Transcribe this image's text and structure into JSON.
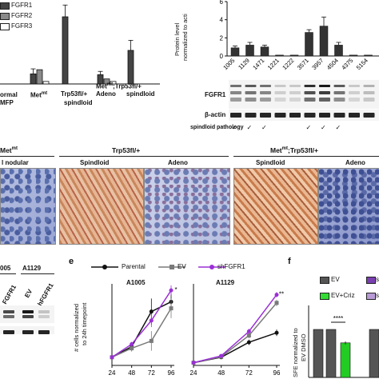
{
  "panel_a": {
    "legend": [
      "FGFR1",
      "FGFR2",
      "FGFR3"
    ],
    "legend_colors": [
      "#444444",
      "#8a8a8a",
      "#ffffff"
    ],
    "group_labels": [
      "ormal",
      "MFP",
      "Met",
      "mt",
      "Trp53fl/+",
      "spindloid",
      "Adeno",
      "spindloid"
    ],
    "metmt": "Met",
    "metmt_sup": "mt",
    "metmt2": "Met",
    "metmt2_sup": "mt",
    "metmt2_suffix": ";Trp53fl/+"
  },
  "panel_b": {
    "ylabel_line1": "Protein level",
    "ylabel_line2": "normalized to acti",
    "ticks": [
      "6",
      "4",
      "2",
      "0"
    ],
    "samples": [
      "1005",
      "1129",
      "1471",
      "1221",
      "1222",
      "3571",
      "3957",
      "4504",
      "4375",
      "5154"
    ],
    "blot_labels": [
      "FGFR1",
      "β-actin"
    ],
    "pathology_label": "spindloid pathology",
    "check": "✓"
  },
  "panel_c": {
    "headers": [
      "Met",
      "Trp53fl/+",
      "Met"
    ],
    "header_sup": "mt",
    "header3_suffix": "mt;Trp53fl/+",
    "subheaders": [
      "l nodular",
      "Spindloid",
      "Adeno",
      "Spindloid",
      "Adeno"
    ]
  },
  "panel_d": {
    "col_labels": [
      "005",
      "A1129"
    ],
    "lane_labels": [
      "FGFR1",
      "EV",
      "shFGFR1"
    ]
  },
  "panel_e": {
    "letter": "e",
    "ylabel_line1": "# cells normalized",
    "ylabel_line2": "to 24h timepoint",
    "legend": [
      "Parental",
      "EV",
      "shFGFR1"
    ],
    "titles": [
      "A1005",
      "A1129"
    ],
    "stars": [
      "*",
      "**"
    ]
  },
  "panel_f": {
    "letter": "f",
    "legend": [
      "EV",
      "s",
      "EV+Criz",
      "s"
    ],
    "ylabel_line1": "SFE normalized to",
    "ylabel_line2": "EV DMSO",
    "ticks": [
      "1.5",
      "1.0",
      "0.5",
      "0.0"
    ],
    "sig": "****"
  },
  "chart_data": [
    {
      "type": "bar",
      "panel": "a",
      "series": [
        {
          "name": "FGFR1",
          "values": [
            0.9,
            1.2,
            8.0,
            1.1,
            4.0
          ]
        },
        {
          "name": "FGFR2",
          "values": [
            0.0,
            1.7,
            0.0,
            0.6,
            0.0
          ]
        },
        {
          "name": "FGFR3",
          "values": [
            0.0,
            0.3,
            0.0,
            0.3,
            0.0
          ]
        }
      ],
      "errors": [
        0.2,
        0.6,
        1.4,
        0.4,
        1.2
      ],
      "ylim": [
        0,
        10
      ]
    },
    {
      "type": "bar",
      "panel": "b",
      "categories": [
        "1005",
        "1129",
        "1471",
        "1221",
        "1222",
        "3571",
        "3957",
        "4504",
        "4375",
        "5154"
      ],
      "values": [
        0.9,
        1.2,
        1.0,
        0.1,
        0.1,
        2.6,
        3.3,
        1.2,
        0.1,
        0.1
      ],
      "errors": [
        0.2,
        0.3,
        0.2,
        0.0,
        0.0,
        0.3,
        1.0,
        0.3,
        0.0,
        0.0
      ],
      "ylim": [
        0,
        6
      ]
    },
    {
      "type": "line",
      "panel": "e",
      "subplot": "A1005",
      "x": [
        24,
        48,
        72,
        96
      ],
      "series": [
        {
          "name": "Parental",
          "values": [
            1.0,
            2.3,
            6.6,
            7.8
          ],
          "errors": [
            0,
            0.5,
            1.6,
            1.0
          ]
        },
        {
          "name": "EV",
          "values": [
            1.0,
            2.1,
            3.0,
            7.0
          ],
          "errors": [
            0,
            0.4,
            1.2,
            1.2
          ]
        },
        {
          "name": "shFGFR1",
          "values": [
            1.0,
            2.6,
            5.5,
            9.2
          ],
          "errors": [
            0,
            0.3,
            0.8,
            0.6
          ]
        }
      ]
    },
    {
      "type": "line",
      "panel": "e",
      "subplot": "A1129",
      "x": [
        24,
        48,
        72,
        96
      ],
      "series": [
        {
          "name": "Parental",
          "values": [
            1.0,
            3.0,
            8.5,
            12.0
          ],
          "errors": [
            0,
            0.5,
            1.0,
            1.2
          ]
        },
        {
          "name": "EV",
          "values": [
            1.0,
            3.2,
            11.0,
            23.0
          ],
          "errors": [
            0,
            0.5,
            1.0,
            1.2
          ]
        },
        {
          "name": "shFGFR1",
          "values": [
            1.0,
            3.5,
            12.5,
            26.0
          ],
          "errors": [
            0,
            0.5,
            1.0,
            1.0
          ]
        }
      ],
      "x_ticks": [
        "24",
        "48",
        "72",
        "96"
      ]
    },
    {
      "type": "bar",
      "panel": "f",
      "categories": [
        "EV",
        "EV",
        "EV+Criz",
        "EV"
      ],
      "values": [
        1.0,
        1.0,
        0.72,
        1.0
      ],
      "errors": [
        0.0,
        0.0,
        0.03,
        0.0
      ],
      "colors": [
        "#555555",
        "#555555",
        "#22cc22",
        "#555555"
      ],
      "ylim": [
        0,
        1.5
      ]
    }
  ]
}
